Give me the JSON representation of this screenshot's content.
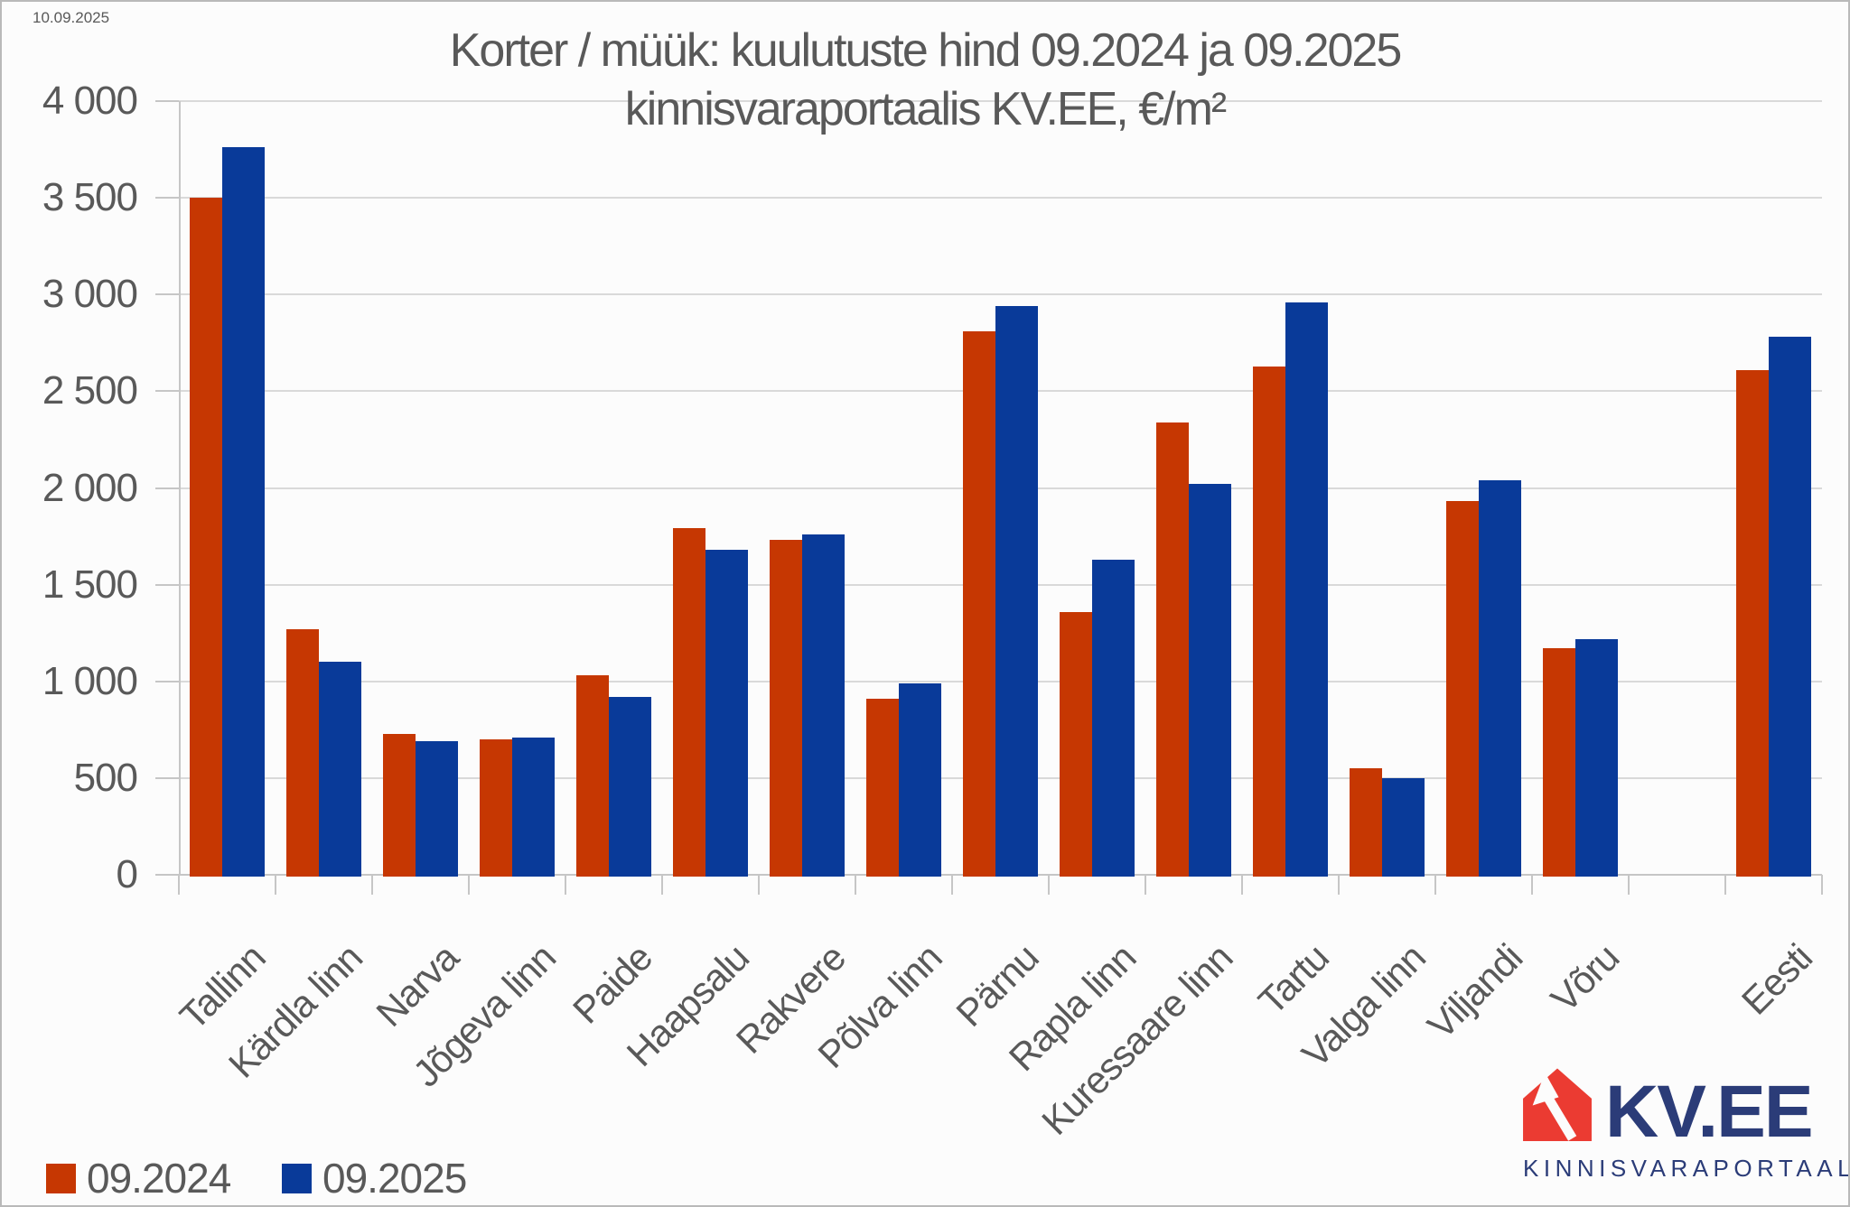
{
  "window": {
    "date_label": "10.09.2025"
  },
  "title": {
    "line1": "Korter / müük: kuulutuste hind 09.2024 ja 09.2025",
    "line2": "kinnisvaraportaalis KV.EE, €/m²"
  },
  "legend": {
    "items": [
      {
        "label": "09.2024",
        "color": "#c63702"
      },
      {
        "label": "09.2025",
        "color": "#093a99"
      }
    ]
  },
  "logo": {
    "brand": "KV.EE",
    "subtitle": "KINNISVARAPORTAAL",
    "house_color": "#eb3b32",
    "text_color": "#2b3c78"
  },
  "chart_data": {
    "type": "bar",
    "title": "Korter / müük: kuulutuste hind 09.2024 ja 09.2025 kinnisvaraportaalis KV.EE, €/m²",
    "categories": [
      "Tallinn",
      "Kärdla linn",
      "Narva",
      "Jõgeva linn",
      "Paide",
      "Haapsalu",
      "Rakvere",
      "Põlva linn",
      "Pärnu",
      "Rapla linn",
      "Kuressaare linn",
      "Tartu",
      "Valga linn",
      "Viljandi",
      "Võru",
      "Eesti"
    ],
    "series": [
      {
        "name": "09.2024",
        "color": "#c63702",
        "values": [
          3500,
          1270,
          730,
          700,
          1030,
          1790,
          1730,
          910,
          2810,
          1360,
          2340,
          2630,
          550,
          1930,
          1170,
          2610
        ]
      },
      {
        "name": "09.2025",
        "color": "#093a99",
        "values": [
          3760,
          1100,
          690,
          710,
          920,
          1680,
          1760,
          990,
          2940,
          1630,
          2020,
          2960,
          500,
          2040,
          1220,
          2780
        ]
      }
    ],
    "ylim": [
      0,
      4000
    ],
    "ytick_step": 500,
    "ytick_labels": [
      "0",
      "500",
      "1 000",
      "1 500",
      "2 000",
      "2 500",
      "3 000",
      "3 500",
      "4 000"
    ],
    "grid": true,
    "gap_before_last": true,
    "legend_position": "bottom-left",
    "xlabel": "",
    "ylabel": ""
  }
}
